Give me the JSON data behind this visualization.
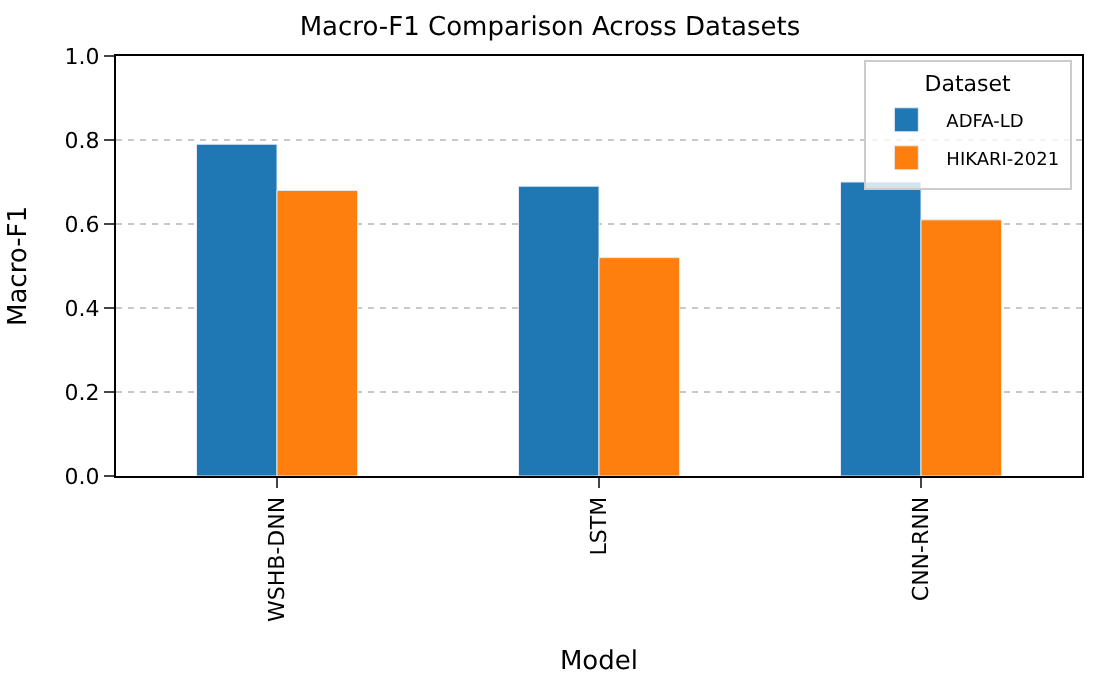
{
  "chart_data": {
    "type": "bar",
    "title": "Macro-F1 Comparison Across Datasets",
    "xlabel": "Model",
    "ylabel": "Macro-F1",
    "legend_title": "Dataset",
    "categories": [
      "WSHB-DNN",
      "LSTM",
      "CNN-RNN"
    ],
    "series": [
      {
        "name": "ADFA-LD",
        "color": "#1f77b4",
        "values": [
          0.79,
          0.69,
          0.7
        ]
      },
      {
        "name": "HIKARI-2021",
        "color": "#ff7f0e",
        "values": [
          0.68,
          0.52,
          0.61
        ]
      }
    ],
    "ylim": [
      0,
      1.0
    ],
    "yticks": [
      {
        "value": 0,
        "label": "0.0"
      },
      {
        "value": 0.2,
        "label": "0.2"
      },
      {
        "value": 0.4,
        "label": "0.4"
      },
      {
        "value": 0.6,
        "label": "0.6"
      },
      {
        "value": 0.8,
        "label": "0.8"
      },
      {
        "value": 1.0,
        "label": "1.0"
      }
    ],
    "grid": "y",
    "legend": "top right"
  }
}
